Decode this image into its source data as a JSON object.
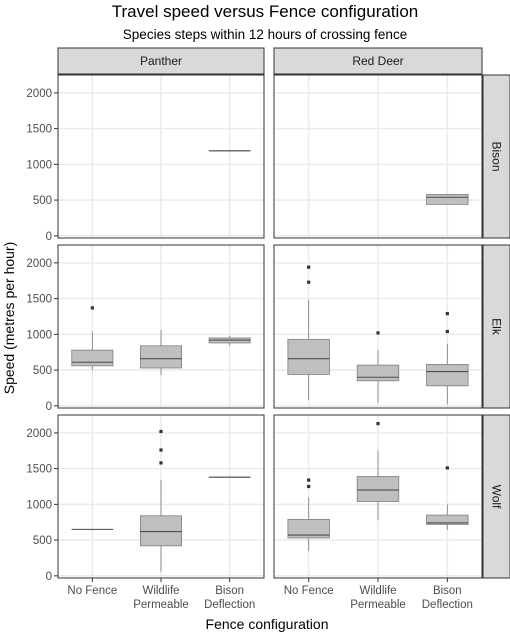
{
  "chart_data": {
    "type": "boxplot",
    "title": "Travel speed versus Fence configuration",
    "subtitle": "Species steps within 12 hours of crossing fence",
    "xlabel": "Fence configuration",
    "ylabel": "Speed (metres per hour)",
    "ylim": [
      -30,
      2250
    ],
    "yticks": [
      0,
      500,
      1000,
      1500,
      2000
    ],
    "categories": [
      {
        "line1": "No Fence",
        "line2": ""
      },
      {
        "line1": "Wildlife",
        "line2": "Permeable"
      },
      {
        "line1": "Bison",
        "line2": "Deflection"
      }
    ],
    "col_facets": [
      "Panther",
      "Red Deer"
    ],
    "row_facets": [
      "Bison",
      "Elk",
      "Wolf"
    ],
    "grid": true,
    "colors": {
      "box_fill": "#bfbfbf",
      "box_stroke": "#7f7f7f",
      "median": "#4d4d4d",
      "outlier": "#333333",
      "strip_fill": "#d9d9d9",
      "panel_border": "#333333",
      "grid": "#ebebeb"
    },
    "panels": [
      {
        "row": "Bison",
        "col": "Panther",
        "boxes": [
          null,
          null,
          {
            "category": 2,
            "q1": 1190,
            "median": 1190,
            "q3": 1190,
            "whisker_low": 1190,
            "whisker_high": 1190,
            "outliers": []
          }
        ]
      },
      {
        "row": "Bison",
        "col": "Red Deer",
        "boxes": [
          null,
          null,
          {
            "category": 2,
            "q1": 440,
            "median": 540,
            "q3": 580,
            "whisker_low": 440,
            "whisker_high": 580,
            "outliers": []
          }
        ]
      },
      {
        "row": "Elk",
        "col": "Panther",
        "boxes": [
          {
            "category": 0,
            "q1": 560,
            "median": 610,
            "q3": 780,
            "whisker_low": 500,
            "whisker_high": 1040,
            "outliers": [
              1370
            ]
          },
          {
            "category": 1,
            "q1": 530,
            "median": 660,
            "q3": 840,
            "whisker_low": 430,
            "whisker_high": 1060,
            "outliers": []
          },
          {
            "category": 2,
            "q1": 880,
            "median": 920,
            "q3": 950,
            "whisker_low": 840,
            "whisker_high": 980,
            "outliers": []
          }
        ]
      },
      {
        "row": "Elk",
        "col": "Red Deer",
        "boxes": [
          {
            "category": 0,
            "q1": 440,
            "median": 660,
            "q3": 930,
            "whisker_low": 80,
            "whisker_high": 1480,
            "outliers": [
              1730,
              1940
            ]
          },
          {
            "category": 1,
            "q1": 350,
            "median": 400,
            "q3": 570,
            "whisker_low": 40,
            "whisker_high": 780,
            "outliers": [
              1020
            ]
          },
          {
            "category": 2,
            "q1": 280,
            "median": 480,
            "q3": 580,
            "whisker_low": 20,
            "whisker_high": 870,
            "outliers": [
              1040,
              1290
            ]
          }
        ]
      },
      {
        "row": "Wolf",
        "col": "Panther",
        "boxes": [
          {
            "category": 0,
            "q1": 650,
            "median": 650,
            "q3": 650,
            "whisker_low": 650,
            "whisker_high": 650,
            "outliers": []
          },
          {
            "category": 1,
            "q1": 420,
            "median": 620,
            "q3": 840,
            "whisker_low": 60,
            "whisker_high": 1340,
            "outliers": [
              1580,
              1760,
              2020
            ]
          },
          {
            "category": 2,
            "q1": 1380,
            "median": 1380,
            "q3": 1380,
            "whisker_low": 1380,
            "whisker_high": 1380,
            "outliers": []
          }
        ]
      },
      {
        "row": "Wolf",
        "col": "Red Deer",
        "boxes": [
          {
            "category": 0,
            "q1": 530,
            "median": 570,
            "q3": 790,
            "whisker_low": 350,
            "whisker_high": 1100,
            "outliers": [
              1250,
              1340
            ]
          },
          {
            "category": 1,
            "q1": 1040,
            "median": 1200,
            "q3": 1390,
            "whisker_low": 780,
            "whisker_high": 1750,
            "outliers": [
              2130
            ]
          },
          {
            "category": 2,
            "q1": 720,
            "median": 740,
            "q3": 850,
            "whisker_low": 640,
            "whisker_high": 1000,
            "outliers": [
              1510
            ]
          }
        ]
      }
    ]
  }
}
